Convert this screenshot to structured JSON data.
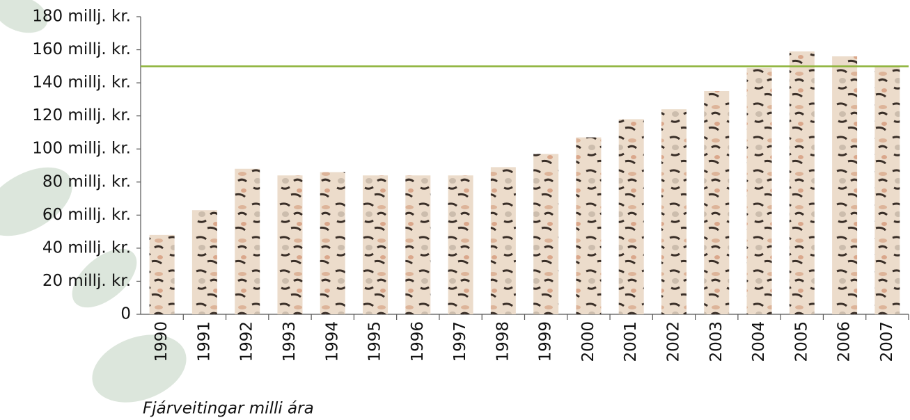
{
  "chart_data": {
    "type": "bar",
    "x_label": "Fjárveitingar milli ára",
    "categories": [
      "1990",
      "1991",
      "1992",
      "1993",
      "1994",
      "1995",
      "1996",
      "1997",
      "1998",
      "1999",
      "2000",
      "2001",
      "2002",
      "2003",
      "2004",
      "2005",
      "2006",
      "2007"
    ],
    "values": [
      48,
      63,
      88,
      84,
      86,
      84,
      84,
      84,
      89,
      97,
      107,
      118,
      124,
      135,
      149,
      159,
      156,
      150
    ],
    "color": "#ecdccb",
    "ylim": [
      0,
      180
    ],
    "yticks": [
      0,
      {
        "value": 20,
        "label": "20 millj. kr."
      },
      {
        "value": 40,
        "label": "40 millj. kr."
      },
      {
        "value": 60,
        "label": "60 millj. kr."
      },
      {
        "value": 80,
        "label": "80 millj. kr."
      },
      {
        "value": 100,
        "label": "100 millj. kr."
      },
      {
        "value": 120,
        "label": "120 millj. kr."
      },
      {
        "value": 140,
        "label": "140 millj. kr."
      },
      {
        "value": 160,
        "label": "160 millj. kr."
      },
      {
        "value": 180,
        "label": "180 millj. kr."
      }
    ],
    "reference_line": {
      "value": 150,
      "color": "#8db33a"
    }
  }
}
